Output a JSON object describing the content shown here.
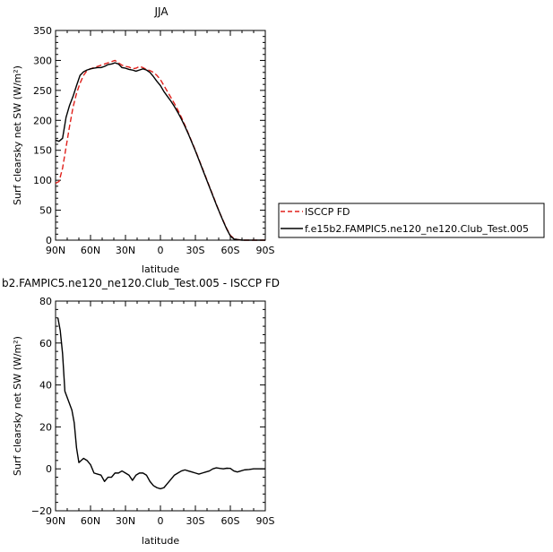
{
  "chart_data": [
    {
      "type": "line",
      "title": "JJA",
      "xlabel": "latitude",
      "ylabel": "Surf clearsky net SW (W/m²)",
      "x_unit": "degrees latitude (positive = north)",
      "xlim": [
        90,
        -90
      ],
      "ylim": [
        0,
        350
      ],
      "xticks": [
        90,
        60,
        30,
        0,
        -30,
        -60,
        -90
      ],
      "xtick_labels": [
        "90N",
        "60N",
        "30N",
        "0",
        "30S",
        "60S",
        "90S"
      ],
      "yticks": [
        0,
        50,
        100,
        150,
        200,
        250,
        300,
        350
      ],
      "ytick_labels": [
        "0",
        "50",
        "100",
        "150",
        "200",
        "250",
        "300",
        "350"
      ],
      "grid": false,
      "legend_position": "right",
      "series": [
        {
          "name": "ISCCP FD",
          "color": "#e0201b",
          "dash": "dashed",
          "points": [
            [
              90,
              95
            ],
            [
              87,
              98
            ],
            [
              84,
              120
            ],
            [
              81,
              155
            ],
            [
              78,
              190
            ],
            [
              75,
              222
            ],
            [
              72,
              245
            ],
            [
              69,
              262
            ],
            [
              66,
              275
            ],
            [
              63,
              283
            ],
            [
              60,
              286
            ],
            [
              57,
              288
            ],
            [
              54,
              290
            ],
            [
              51,
              292
            ],
            [
              48,
              294
            ],
            [
              45,
              296
            ],
            [
              42,
              298
            ],
            [
              39,
              300
            ],
            [
              36,
              296
            ],
            [
              33,
              292
            ],
            [
              30,
              290
            ],
            [
              27,
              289
            ],
            [
              24,
              286
            ],
            [
              21,
              287
            ],
            [
              18,
              290
            ],
            [
              15,
              288
            ],
            [
              12,
              285
            ],
            [
              9,
              283
            ],
            [
              6,
              280
            ],
            [
              3,
              275
            ],
            [
              0,
              268
            ],
            [
              -3,
              258
            ],
            [
              -6,
              248
            ],
            [
              -9,
              238
            ],
            [
              -12,
              228
            ],
            [
              -15,
              217
            ],
            [
              -18,
              205
            ],
            [
              -21,
              192
            ],
            [
              -24,
              178
            ],
            [
              -27,
              164
            ],
            [
              -30,
              150
            ],
            [
              -33,
              135
            ],
            [
              -36,
              120
            ],
            [
              -39,
              105
            ],
            [
              -42,
              90
            ],
            [
              -45,
              75
            ],
            [
              -48,
              60
            ],
            [
              -51,
              45
            ],
            [
              -54,
              32
            ],
            [
              -57,
              19
            ],
            [
              -60,
              8
            ],
            [
              -63,
              3
            ],
            [
              -66,
              1
            ],
            [
              -70,
              0
            ],
            [
              -75,
              0
            ],
            [
              -80,
              0
            ],
            [
              -85,
              0
            ],
            [
              -90,
              0
            ]
          ]
        },
        {
          "name": "f.e15b2.FAMPIC5.ne120_ne120.Club_Test.005",
          "color": "#000000",
          "dash": "solid",
          "points": [
            [
              90,
              167
            ],
            [
              87,
              165
            ],
            [
              84,
              170
            ],
            [
              81,
              205
            ],
            [
              78,
              225
            ],
            [
              75,
              240
            ],
            [
              72,
              258
            ],
            [
              69,
              275
            ],
            [
              66,
              281
            ],
            [
              63,
              284
            ],
            [
              60,
              286
            ],
            [
              57,
              287
            ],
            [
              54,
              288
            ],
            [
              51,
              288
            ],
            [
              48,
              290
            ],
            [
              45,
              293
            ],
            [
              42,
              294
            ],
            [
              39,
              296
            ],
            [
              36,
              294
            ],
            [
              33,
              288
            ],
            [
              30,
              287
            ],
            [
              27,
              285
            ],
            [
              24,
              284
            ],
            [
              21,
              282
            ],
            [
              18,
              284
            ],
            [
              15,
              286
            ],
            [
              12,
              284
            ],
            [
              9,
              280
            ],
            [
              6,
              273
            ],
            [
              3,
              265
            ],
            [
              0,
              258
            ],
            [
              -3,
              248
            ],
            [
              -6,
              240
            ],
            [
              -9,
              232
            ],
            [
              -12,
              223
            ],
            [
              -15,
              213
            ],
            [
              -18,
              202
            ],
            [
              -21,
              190
            ],
            [
              -24,
              177
            ],
            [
              -27,
              163
            ],
            [
              -30,
              149
            ],
            [
              -33,
              134
            ],
            [
              -36,
              119
            ],
            [
              -39,
              104
            ],
            [
              -42,
              89
            ],
            [
              -45,
              74
            ],
            [
              -48,
              59
            ],
            [
              -51,
              45
            ],
            [
              -54,
              31
            ],
            [
              -57,
              18
            ],
            [
              -60,
              7
            ],
            [
              -63,
              2
            ],
            [
              -66,
              1
            ],
            [
              -70,
              0
            ],
            [
              -75,
              0
            ],
            [
              -80,
              0
            ],
            [
              -85,
              0
            ],
            [
              -90,
              0
            ]
          ]
        }
      ]
    },
    {
      "type": "line",
      "title": "b2.FAMPIC5.ne120_ne120.Club_Test.005 - ISCCP FD",
      "xlabel": "latitude",
      "ylabel": "Surf clearsky net SW (W/m²)",
      "x_unit": "degrees latitude (positive = north)",
      "xlim": [
        90,
        -90
      ],
      "ylim": [
        -20,
        80
      ],
      "xticks": [
        90,
        60,
        30,
        0,
        -30,
        -60,
        -90
      ],
      "xtick_labels": [
        "90N",
        "60N",
        "30N",
        "0",
        "30S",
        "60S",
        "90S"
      ],
      "yticks": [
        -20,
        0,
        20,
        40,
        60,
        80
      ],
      "ytick_labels": [
        "−20",
        "0",
        "20",
        "40",
        "60",
        "80"
      ],
      "grid": false,
      "series": [
        {
          "color": "#000000",
          "dash": "solid",
          "points": [
            [
              88,
              72
            ],
            [
              86,
              66
            ],
            [
              84,
              55
            ],
            [
              82,
              37
            ],
            [
              80,
              34
            ],
            [
              78,
              31
            ],
            [
              76,
              28
            ],
            [
              74,
              22
            ],
            [
              72,
              10
            ],
            [
              70,
              3
            ],
            [
              68,
              4
            ],
            [
              66,
              5
            ],
            [
              63,
              4
            ],
            [
              60,
              2
            ],
            [
              57,
              -2
            ],
            [
              54,
              -2.5
            ],
            [
              51,
              -3
            ],
            [
              48,
              -6
            ],
            [
              45,
              -4
            ],
            [
              42,
              -4
            ],
            [
              39,
              -2
            ],
            [
              36,
              -2
            ],
            [
              33,
              -1
            ],
            [
              30,
              -2
            ],
            [
              27,
              -3
            ],
            [
              24,
              -5.5
            ],
            [
              21,
              -3
            ],
            [
              18,
              -2
            ],
            [
              15,
              -2
            ],
            [
              12,
              -3
            ],
            [
              9,
              -6
            ],
            [
              6,
              -8
            ],
            [
              3,
              -9
            ],
            [
              0,
              -9.5
            ],
            [
              -3,
              -9
            ],
            [
              -6,
              -7
            ],
            [
              -9,
              -5
            ],
            [
              -12,
              -3
            ],
            [
              -15,
              -2
            ],
            [
              -18,
              -1
            ],
            [
              -21,
              -0.5
            ],
            [
              -24,
              -1
            ],
            [
              -27,
              -1.5
            ],
            [
              -30,
              -2
            ],
            [
              -33,
              -2.5
            ],
            [
              -36,
              -2
            ],
            [
              -39,
              -1.5
            ],
            [
              -42,
              -1
            ],
            [
              -45,
              0
            ],
            [
              -48,
              0.5
            ],
            [
              -51,
              0.2
            ],
            [
              -54,
              0
            ],
            [
              -57,
              0.3
            ],
            [
              -60,
              0.2
            ],
            [
              -63,
              -1
            ],
            [
              -66,
              -1.5
            ],
            [
              -69,
              -1
            ],
            [
              -72,
              -0.5
            ],
            [
              -76,
              -0.3
            ],
            [
              -80,
              0
            ],
            [
              -85,
              0
            ],
            [
              -90,
              0
            ]
          ]
        }
      ]
    }
  ]
}
